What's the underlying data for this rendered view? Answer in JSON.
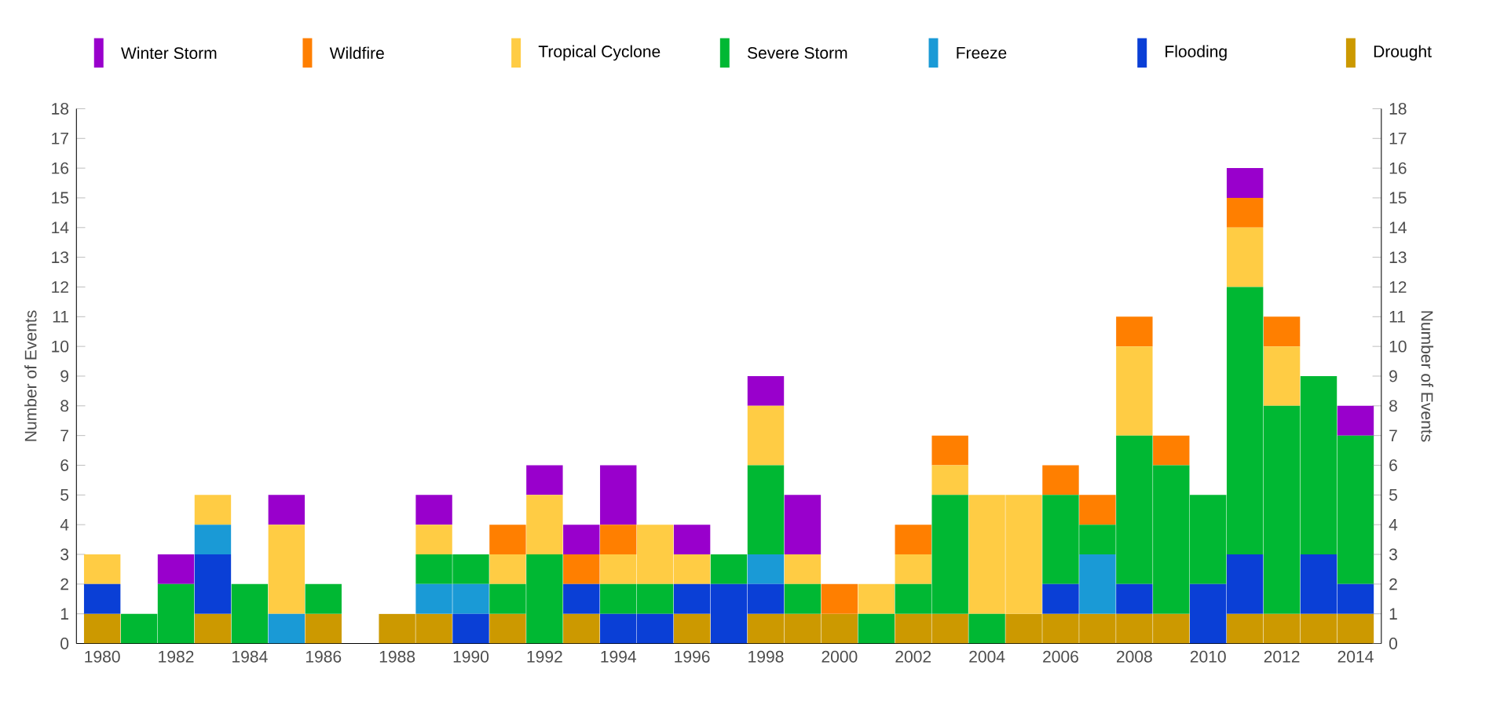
{
  "chart_data": {
    "type": "bar",
    "stacked": true,
    "legend": "top",
    "ylabel": "Number of Events",
    "y2label": "Number of Events",
    "categories": [
      "1980",
      null,
      "1982",
      null,
      "1984",
      null,
      "1986",
      null,
      "1988",
      null,
      "1990",
      null,
      "1992",
      null,
      "1994",
      null,
      "1996",
      null,
      "1998",
      null,
      "2000",
      null,
      "2002",
      null,
      "2004",
      null,
      "2006",
      null,
      "2008",
      null,
      "2010",
      null,
      "2012",
      null,
      "2014"
    ],
    "ylim": [
      0,
      18
    ],
    "yticks": [
      0,
      1,
      2,
      3,
      4,
      5,
      6,
      7,
      8,
      9,
      10,
      11,
      12,
      13,
      14,
      15,
      16,
      17,
      18
    ],
    "y2lim": [
      0,
      18
    ],
    "y2ticks": [
      0,
      1,
      2,
      3,
      4,
      5,
      6,
      7,
      8,
      9,
      10,
      11,
      12,
      13,
      14,
      15,
      16,
      17,
      18
    ],
    "series": [
      {
        "name": "Drought",
        "color": "#cc9900",
        "values": [
          1,
          0,
          0,
          1,
          0,
          0,
          1,
          0,
          1,
          1,
          0,
          1,
          0,
          1,
          0,
          0,
          1,
          0,
          1,
          1,
          1,
          0,
          1,
          1,
          0,
          1,
          1,
          1,
          1,
          1,
          0,
          1,
          1,
          1,
          1
        ]
      },
      {
        "name": "Flooding",
        "color": "#0a3fd6",
        "values": [
          1,
          0,
          0,
          2,
          0,
          0,
          0,
          0,
          0,
          0,
          1,
          0,
          0,
          1,
          1,
          1,
          1,
          2,
          1,
          0,
          0,
          0,
          0,
          0,
          0,
          0,
          1,
          0,
          1,
          0,
          2,
          2,
          0,
          2,
          1
        ]
      },
      {
        "name": "Freeze",
        "color": "#1a9ad6",
        "values": [
          0,
          0,
          0,
          1,
          0,
          1,
          0,
          0,
          0,
          1,
          1,
          0,
          0,
          0,
          0,
          0,
          0,
          0,
          1,
          0,
          0,
          0,
          0,
          0,
          0,
          0,
          0,
          2,
          0,
          0,
          0,
          0,
          0,
          0,
          0
        ]
      },
      {
        "name": "Severe Storm",
        "color": "#00b833",
        "values": [
          0,
          1,
          2,
          0,
          2,
          0,
          1,
          0,
          0,
          1,
          1,
          1,
          3,
          0,
          1,
          1,
          0,
          1,
          3,
          1,
          0,
          1,
          1,
          4,
          1,
          0,
          3,
          1,
          5,
          5,
          3,
          9,
          7,
          6,
          5
        ]
      },
      {
        "name": "Tropical Cyclone",
        "color": "#ffcc44",
        "values": [
          1,
          0,
          0,
          1,
          0,
          3,
          0,
          0,
          0,
          1,
          0,
          1,
          2,
          0,
          1,
          2,
          1,
          0,
          2,
          1,
          0,
          1,
          1,
          1,
          4,
          4,
          0,
          0,
          3,
          0,
          0,
          2,
          2,
          0,
          0
        ]
      },
      {
        "name": "Wildfire",
        "color": "#ff7f00",
        "values": [
          0,
          0,
          0,
          0,
          0,
          0,
          0,
          0,
          0,
          0,
          0,
          1,
          0,
          1,
          1,
          0,
          0,
          0,
          0,
          0,
          1,
          0,
          1,
          1,
          0,
          0,
          1,
          1,
          1,
          1,
          0,
          1,
          1,
          0,
          0
        ]
      },
      {
        "name": "Winter Storm",
        "color": "#9900cc",
        "values": [
          0,
          0,
          1,
          0,
          0,
          1,
          0,
          0,
          0,
          1,
          0,
          0,
          1,
          1,
          2,
          0,
          1,
          0,
          1,
          2,
          0,
          0,
          0,
          0,
          0,
          0,
          0,
          0,
          0,
          0,
          0,
          1,
          0,
          0,
          1
        ]
      }
    ]
  }
}
